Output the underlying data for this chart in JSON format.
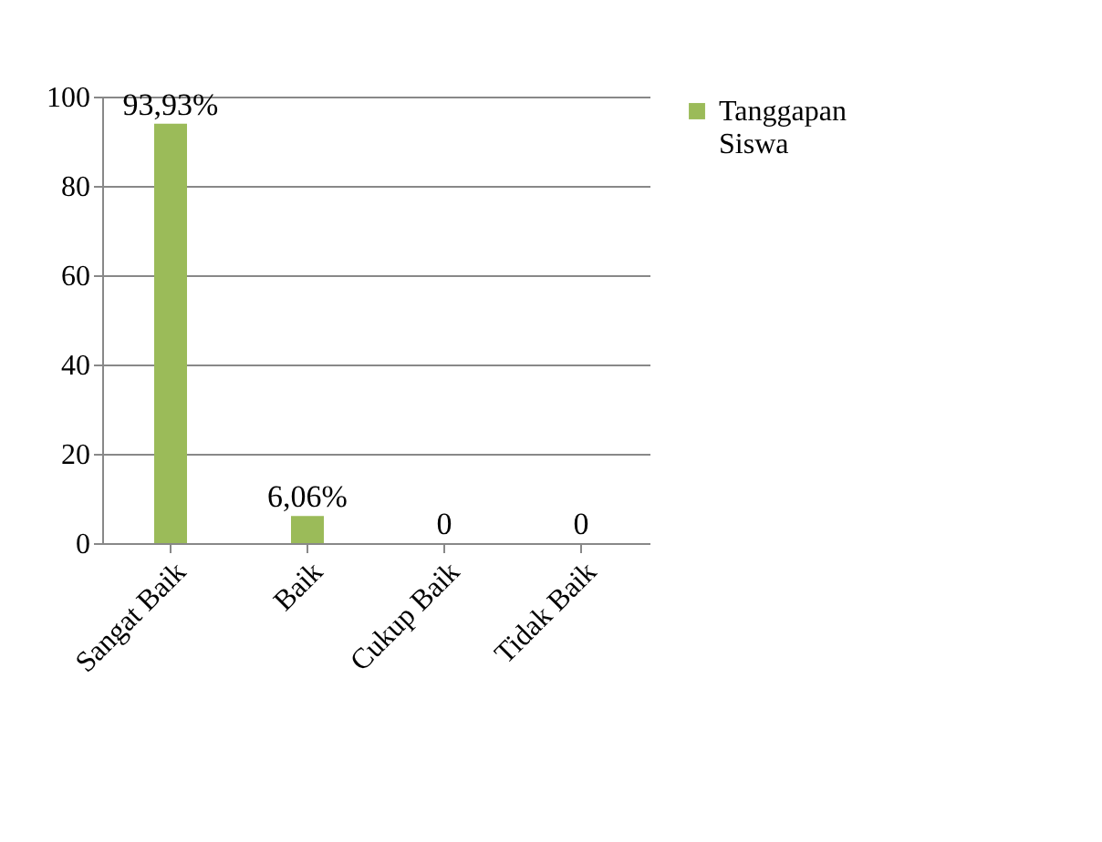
{
  "chart_data": {
    "type": "bar",
    "categories": [
      "Sangat Baik",
      "Baik",
      "Cukup Baik",
      "Tidak Baik"
    ],
    "series": [
      {
        "name": "Tanggapan Siswa",
        "color": "#9bbb59",
        "values": [
          93.93,
          6.06,
          0,
          0
        ],
        "value_labels": [
          "93,93%",
          "6,06%",
          "0",
          "0"
        ]
      }
    ],
    "ylim": [
      0,
      100
    ],
    "yticks": [
      0,
      20,
      40,
      60,
      80,
      100
    ],
    "grid": "y",
    "legend": "right"
  }
}
